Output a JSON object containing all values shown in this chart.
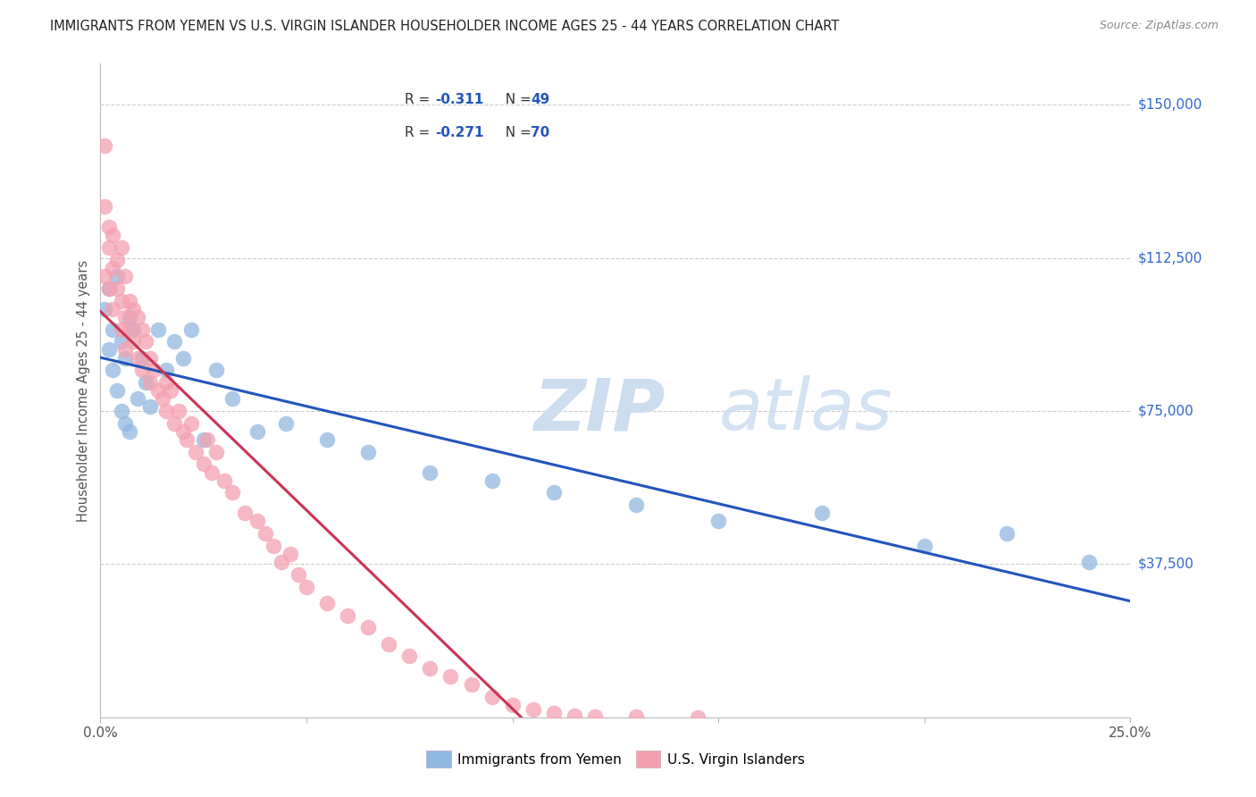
{
  "title": "IMMIGRANTS FROM YEMEN VS U.S. VIRGIN ISLANDER HOUSEHOLDER INCOME AGES 25 - 44 YEARS CORRELATION CHART",
  "source": "Source: ZipAtlas.com",
  "ylabel": "Householder Income Ages 25 - 44 years",
  "xlim": [
    0.0,
    0.25
  ],
  "ylim": [
    0,
    160000
  ],
  "yticks": [
    37500,
    75000,
    112500,
    150000
  ],
  "ytick_labels": [
    "$37,500",
    "$75,000",
    "$112,500",
    "$150,000"
  ],
  "xticks": [
    0.0,
    0.05,
    0.1,
    0.15,
    0.2,
    0.25
  ],
  "xtick_labels": [
    "0.0%",
    "",
    "",
    "",
    "",
    "25.0%"
  ],
  "legend_label1": "Immigrants from Yemen",
  "legend_label2": "U.S. Virgin Islanders",
  "color_blue": "#90b8e0",
  "color_pink": "#f4a0b0",
  "color_blue_line": "#2255bb",
  "color_pink_line": "#cc3355",
  "color_pink_dashed": "#e8a0b8",
  "watermark_zip": "ZIP",
  "watermark_atlas": "atlas",
  "background": "#FFFFFF",
  "grid_color": "#cccccc",
  "yemen_x": [
    0.001,
    0.002,
    0.002,
    0.003,
    0.003,
    0.004,
    0.004,
    0.005,
    0.005,
    0.006,
    0.006,
    0.007,
    0.007,
    0.008,
    0.009,
    0.01,
    0.011,
    0.012,
    0.014,
    0.016,
    0.018,
    0.02,
    0.022,
    0.025,
    0.028,
    0.032,
    0.038,
    0.045,
    0.055,
    0.065,
    0.08,
    0.095,
    0.11,
    0.13,
    0.15,
    0.175,
    0.2,
    0.22,
    0.24
  ],
  "yemen_y": [
    100000,
    105000,
    90000,
    95000,
    85000,
    108000,
    80000,
    92000,
    75000,
    88000,
    72000,
    98000,
    70000,
    95000,
    78000,
    88000,
    82000,
    76000,
    95000,
    85000,
    92000,
    88000,
    95000,
    68000,
    85000,
    78000,
    70000,
    72000,
    68000,
    65000,
    60000,
    58000,
    55000,
    52000,
    48000,
    50000,
    42000,
    45000,
    38000
  ],
  "virgin_x": [
    0.001,
    0.001,
    0.001,
    0.002,
    0.002,
    0.002,
    0.003,
    0.003,
    0.003,
    0.004,
    0.004,
    0.005,
    0.005,
    0.005,
    0.006,
    0.006,
    0.006,
    0.007,
    0.007,
    0.008,
    0.008,
    0.009,
    0.009,
    0.01,
    0.01,
    0.011,
    0.012,
    0.012,
    0.013,
    0.014,
    0.015,
    0.016,
    0.016,
    0.017,
    0.018,
    0.019,
    0.02,
    0.021,
    0.022,
    0.023,
    0.025,
    0.026,
    0.027,
    0.028,
    0.03,
    0.032,
    0.035,
    0.038,
    0.04,
    0.042,
    0.044,
    0.046,
    0.048,
    0.05,
    0.055,
    0.06,
    0.065,
    0.07,
    0.075,
    0.08,
    0.085,
    0.09,
    0.095,
    0.1,
    0.105,
    0.11,
    0.115,
    0.12,
    0.13,
    0.145
  ],
  "virgin_y": [
    140000,
    125000,
    108000,
    120000,
    115000,
    105000,
    118000,
    110000,
    100000,
    112000,
    105000,
    115000,
    102000,
    95000,
    108000,
    98000,
    90000,
    102000,
    95000,
    100000,
    92000,
    98000,
    88000,
    95000,
    85000,
    92000,
    88000,
    82000,
    85000,
    80000,
    78000,
    82000,
    75000,
    80000,
    72000,
    75000,
    70000,
    68000,
    72000,
    65000,
    62000,
    68000,
    60000,
    65000,
    58000,
    55000,
    50000,
    48000,
    45000,
    42000,
    38000,
    40000,
    35000,
    32000,
    28000,
    25000,
    22000,
    18000,
    15000,
    12000,
    10000,
    8000,
    5000,
    3000,
    2000,
    1000,
    500,
    200,
    100,
    50
  ]
}
